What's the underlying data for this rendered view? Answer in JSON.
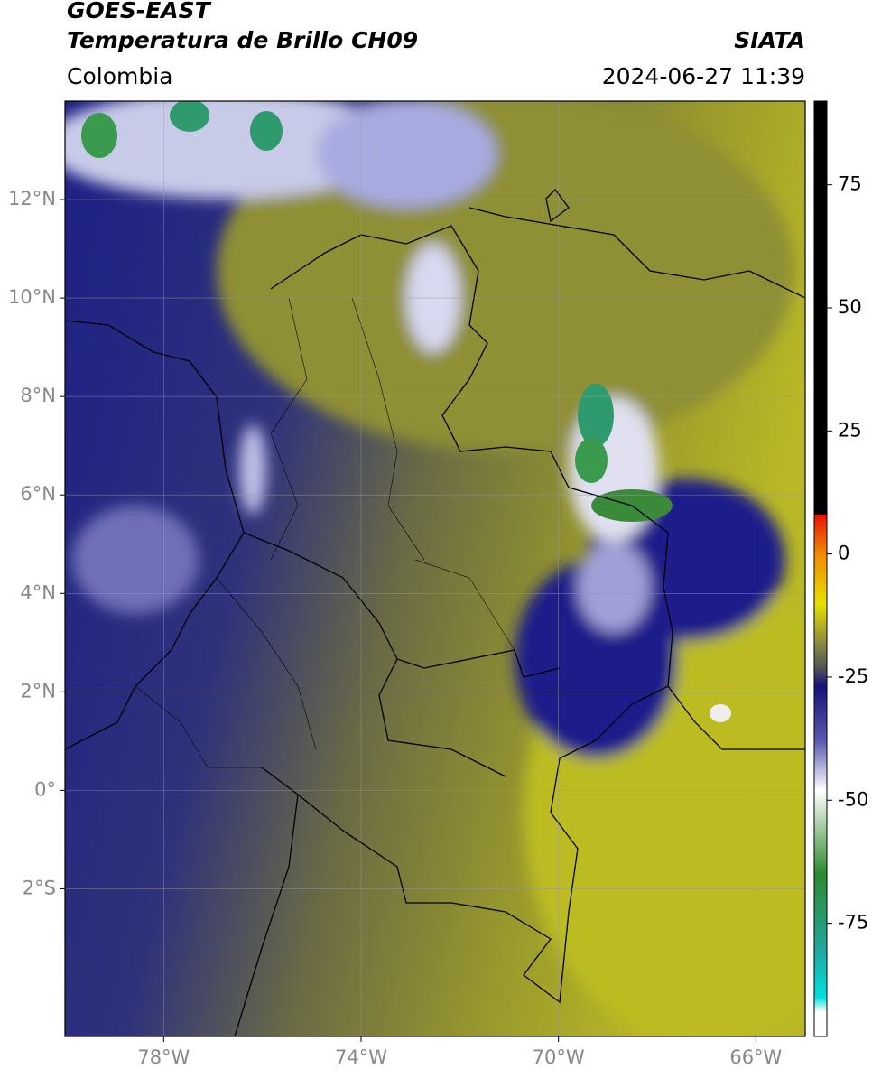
{
  "chart_data": {
    "type": "map",
    "title": "GOES-EAST",
    "subtitle": "Temperatura de Brillo CH09",
    "region": "Colombia",
    "source": "SIATA",
    "datetime": "2024-06-27 11:39",
    "xlim": [
      -80,
      -65
    ],
    "ylim": [
      -5,
      14
    ],
    "xticks": [
      {
        "value": -78,
        "label": "78°W"
      },
      {
        "value": -74,
        "label": "74°W"
      },
      {
        "value": -70,
        "label": "70°W"
      },
      {
        "value": -66,
        "label": "66°W"
      }
    ],
    "yticks": [
      {
        "value": 12,
        "label": "12°N"
      },
      {
        "value": 10,
        "label": "10°N"
      },
      {
        "value": 8,
        "label": "8°N"
      },
      {
        "value": 6,
        "label": "6°N"
      },
      {
        "value": 4,
        "label": "4°N"
      },
      {
        "value": 2,
        "label": "2°N"
      },
      {
        "value": 0,
        "label": "0°"
      },
      {
        "value": -2,
        "label": "2°S"
      }
    ],
    "grid": true,
    "colorbar": {
      "lim": [
        -98,
        92
      ],
      "ticks": [
        75,
        50,
        25,
        0,
        -25,
        -50,
        -75
      ]
    }
  }
}
